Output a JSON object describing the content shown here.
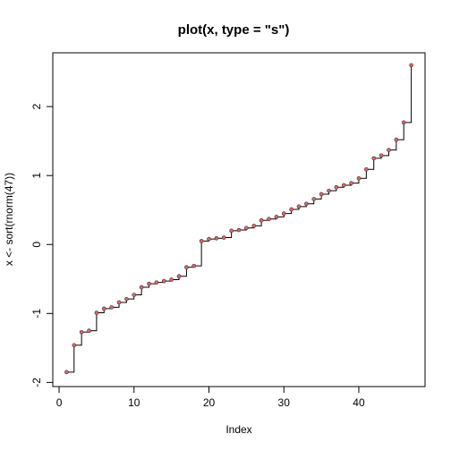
{
  "chart_data": {
    "type": "line",
    "title": "plot(x, type = \"s\")",
    "xlabel": "Index",
    "ylabel": "x <- sort(rnorm(47))",
    "xlim": [
      -0.84,
      48.84
    ],
    "ylim": [
      -2.06,
      2.78
    ],
    "xticks": [
      0,
      10,
      20,
      30,
      40
    ],
    "yticks": [
      -2,
      -1,
      0,
      1,
      2
    ],
    "x": [
      1,
      2,
      3,
      4,
      5,
      6,
      7,
      8,
      9,
      10,
      11,
      12,
      13,
      14,
      15,
      16,
      17,
      18,
      19,
      20,
      21,
      22,
      23,
      24,
      25,
      26,
      27,
      28,
      29,
      30,
      31,
      32,
      33,
      34,
      35,
      36,
      37,
      38,
      39,
      40,
      41,
      42,
      43,
      44,
      45,
      46,
      47
    ],
    "series": [
      {
        "step": "post",
        "line_color": "#000000",
        "point_color": "#e06666",
        "values": [
          -1.85,
          -1.46,
          -1.27,
          -1.25,
          -0.99,
          -0.93,
          -0.91,
          -0.84,
          -0.79,
          -0.73,
          -0.62,
          -0.57,
          -0.55,
          -0.53,
          -0.51,
          -0.46,
          -0.33,
          -0.31,
          0.05,
          0.08,
          0.09,
          0.1,
          0.2,
          0.21,
          0.24,
          0.27,
          0.35,
          0.37,
          0.4,
          0.45,
          0.51,
          0.55,
          0.59,
          0.66,
          0.73,
          0.78,
          0.83,
          0.86,
          0.89,
          0.96,
          1.09,
          1.25,
          1.29,
          1.37,
          1.52,
          1.77,
          2.6
        ]
      }
    ]
  }
}
